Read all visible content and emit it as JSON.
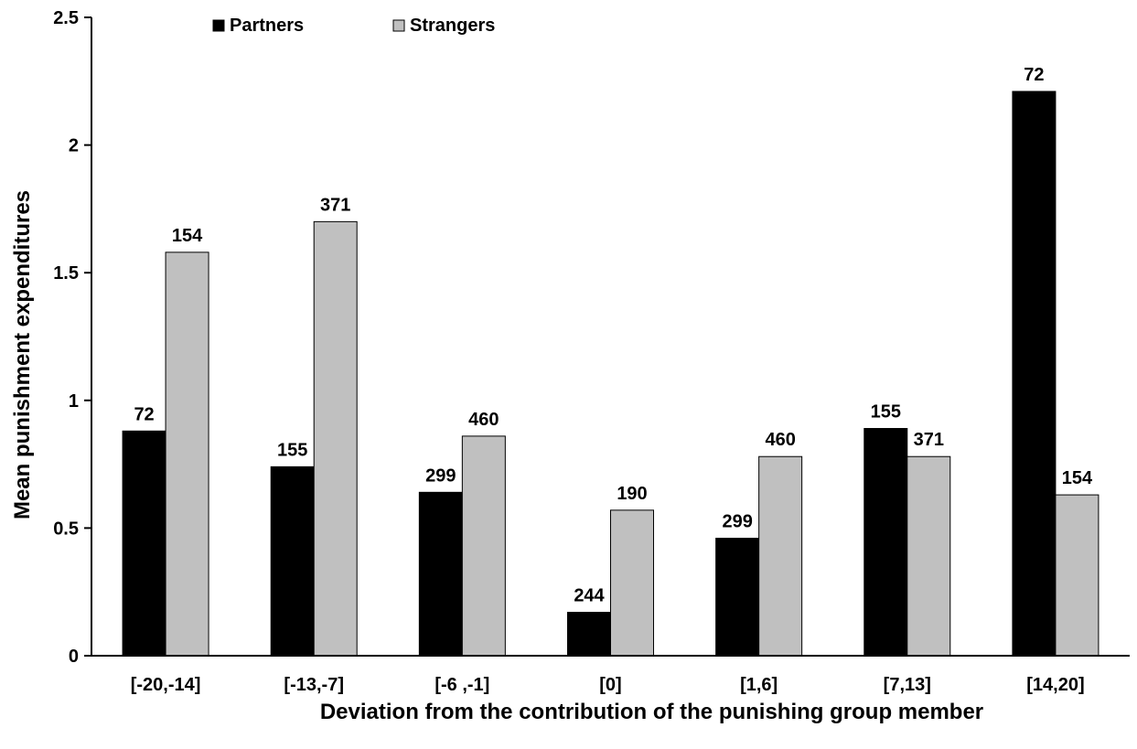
{
  "chart_data": {
    "type": "bar",
    "title": "",
    "xlabel": "Deviation from the contribution of the punishing group member",
    "ylabel": "Mean punishment expenditures",
    "ylim": [
      0,
      2.5
    ],
    "yticks": [
      "0",
      "0.5",
      "1",
      "1.5",
      "2",
      "2.5"
    ],
    "ytick_values": [
      0,
      0.5,
      1,
      1.5,
      2,
      2.5
    ],
    "categories": [
      "[-20,-14]",
      "[-13,-7]",
      "[-6 ,-1]",
      "[0]",
      "[1,6]",
      "[7,13]",
      "[14,20]"
    ],
    "grid": false,
    "legend_position": "top-left",
    "series": [
      {
        "name": "Partners",
        "color": "#000000",
        "values": [
          0.88,
          0.74,
          0.64,
          0.17,
          0.46,
          0.89,
          2.21
        ],
        "labels": [
          "72",
          "155",
          "299",
          "244",
          "299",
          "155",
          "72"
        ]
      },
      {
        "name": "Strangers",
        "color": "#c0c0c0",
        "values": [
          1.58,
          1.7,
          0.86,
          0.57,
          0.78,
          0.78,
          0.63
        ],
        "labels": [
          "154",
          "371",
          "460",
          "190",
          "460",
          "371",
          "154"
        ]
      }
    ]
  }
}
